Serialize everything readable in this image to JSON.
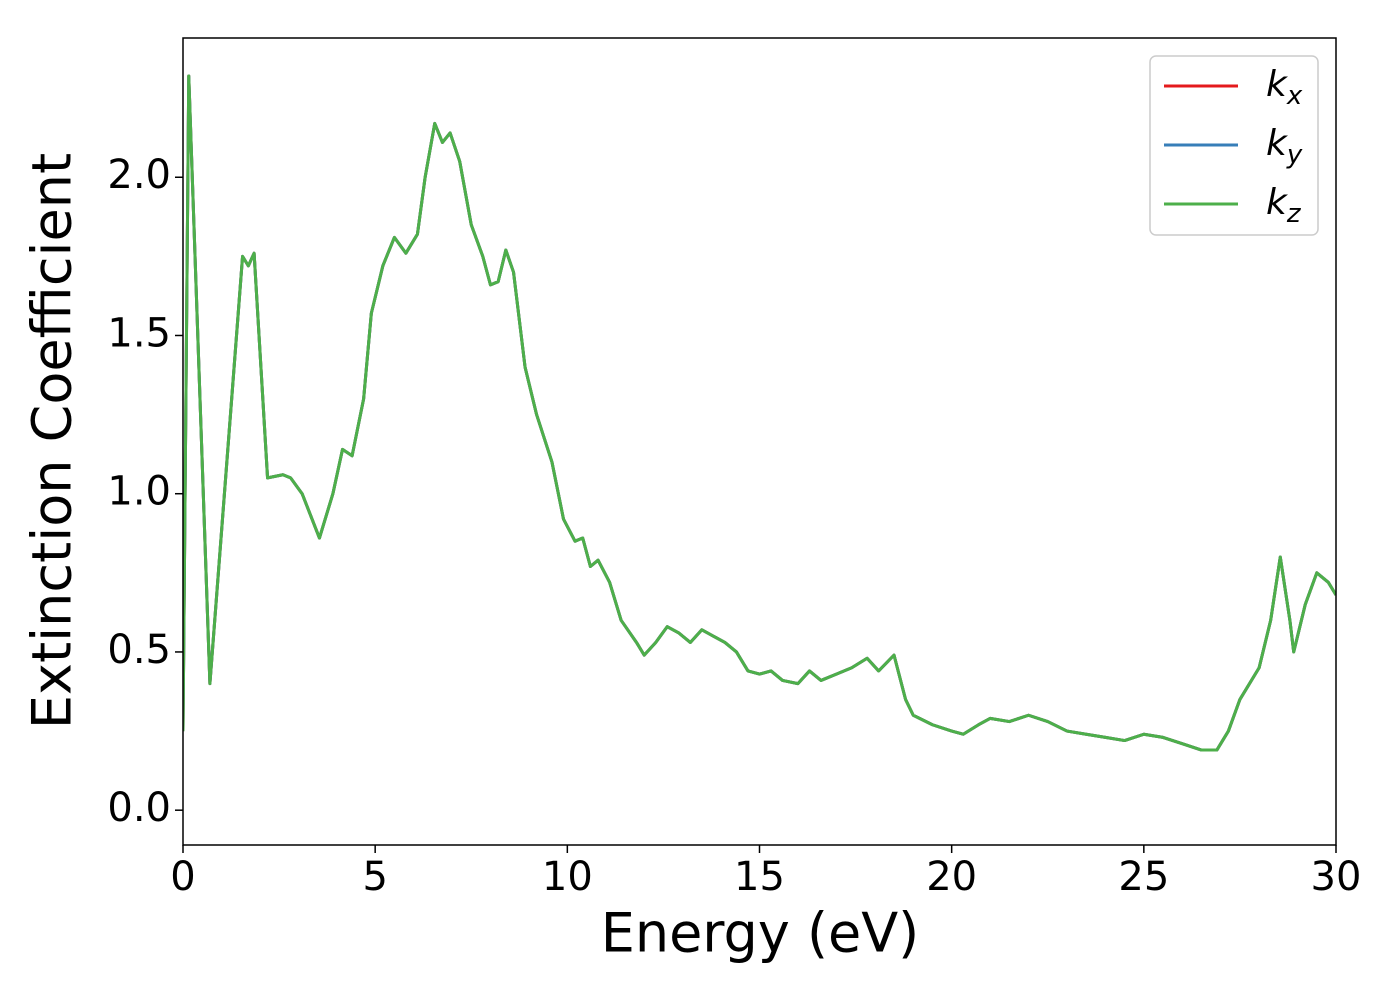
{
  "chart_data": {
    "type": "line",
    "xlabel": "Energy (eV)",
    "ylabel": "Extinction Coefficient",
    "x": [
      0,
      0.15,
      0.7,
      1.55,
      1.7,
      1.85,
      2.2,
      2.6,
      2.8,
      3.1,
      3.55,
      3.9,
      4.15,
      4.4,
      4.7,
      4.9,
      5.2,
      5.5,
      5.8,
      6.1,
      6.3,
      6.55,
      6.75,
      6.95,
      7.2,
      7.5,
      7.8,
      8.0,
      8.2,
      8.4,
      8.6,
      8.9,
      9.2,
      9.6,
      9.9,
      10.2,
      10.4,
      10.6,
      10.8,
      11.1,
      11.4,
      11.8,
      12.0,
      12.3,
      12.6,
      12.9,
      13.2,
      13.5,
      13.8,
      14.1,
      14.4,
      14.7,
      15.0,
      15.3,
      15.6,
      16.0,
      16.3,
      16.6,
      17.0,
      17.4,
      17.8,
      18.1,
      18.5,
      18.8,
      19.0,
      19.5,
      20.0,
      20.3,
      20.7,
      21.0,
      21.5,
      22.0,
      22.5,
      23.0,
      23.5,
      24.0,
      24.5,
      25.0,
      25.5,
      26.0,
      26.5,
      26.9,
      27.2,
      27.5,
      28.0,
      28.3,
      28.55,
      28.8,
      28.9,
      29.2,
      29.5,
      29.8,
      30.0
    ],
    "series": [
      {
        "name": "kx",
        "color": "#e41a1c",
        "values": [
          0.25,
          2.32,
          0.4,
          1.75,
          1.72,
          1.76,
          1.05,
          1.06,
          1.05,
          1.0,
          0.86,
          1.0,
          1.14,
          1.12,
          1.3,
          1.57,
          1.72,
          1.81,
          1.76,
          1.82,
          2.0,
          2.17,
          2.11,
          2.14,
          2.05,
          1.85,
          1.75,
          1.66,
          1.67,
          1.77,
          1.7,
          1.4,
          1.25,
          1.1,
          0.92,
          0.85,
          0.86,
          0.77,
          0.79,
          0.72,
          0.6,
          0.53,
          0.49,
          0.53,
          0.58,
          0.56,
          0.53,
          0.57,
          0.55,
          0.53,
          0.5,
          0.44,
          0.43,
          0.44,
          0.41,
          0.4,
          0.44,
          0.41,
          0.43,
          0.45,
          0.48,
          0.44,
          0.49,
          0.35,
          0.3,
          0.27,
          0.25,
          0.24,
          0.27,
          0.29,
          0.28,
          0.3,
          0.28,
          0.25,
          0.24,
          0.23,
          0.22,
          0.24,
          0.23,
          0.21,
          0.19,
          0.19,
          0.25,
          0.35,
          0.45,
          0.6,
          0.8,
          0.6,
          0.5,
          0.65,
          0.75,
          0.72,
          0.68
        ]
      },
      {
        "name": "ky",
        "color": "#377eb8",
        "values": [
          0.25,
          2.32,
          0.4,
          1.75,
          1.72,
          1.76,
          1.05,
          1.06,
          1.05,
          1.0,
          0.86,
          1.0,
          1.14,
          1.12,
          1.3,
          1.57,
          1.72,
          1.81,
          1.76,
          1.82,
          2.0,
          2.17,
          2.11,
          2.14,
          2.05,
          1.85,
          1.75,
          1.66,
          1.67,
          1.77,
          1.7,
          1.4,
          1.25,
          1.1,
          0.92,
          0.85,
          0.86,
          0.77,
          0.79,
          0.72,
          0.6,
          0.53,
          0.49,
          0.53,
          0.58,
          0.56,
          0.53,
          0.57,
          0.55,
          0.53,
          0.5,
          0.44,
          0.43,
          0.44,
          0.41,
          0.4,
          0.44,
          0.41,
          0.43,
          0.45,
          0.48,
          0.44,
          0.49,
          0.35,
          0.3,
          0.27,
          0.25,
          0.24,
          0.27,
          0.29,
          0.28,
          0.3,
          0.28,
          0.25,
          0.24,
          0.23,
          0.22,
          0.24,
          0.23,
          0.21,
          0.19,
          0.19,
          0.25,
          0.35,
          0.45,
          0.6,
          0.8,
          0.6,
          0.5,
          0.65,
          0.75,
          0.72,
          0.68
        ]
      },
      {
        "name": "kz",
        "color": "#4daf4a",
        "values": [
          0.25,
          2.32,
          0.4,
          1.75,
          1.72,
          1.76,
          1.05,
          1.06,
          1.05,
          1.0,
          0.86,
          1.0,
          1.14,
          1.12,
          1.3,
          1.57,
          1.72,
          1.81,
          1.76,
          1.82,
          2.0,
          2.17,
          2.11,
          2.14,
          2.05,
          1.85,
          1.75,
          1.66,
          1.67,
          1.77,
          1.7,
          1.4,
          1.25,
          1.1,
          0.92,
          0.85,
          0.86,
          0.77,
          0.79,
          0.72,
          0.6,
          0.53,
          0.49,
          0.53,
          0.58,
          0.56,
          0.53,
          0.57,
          0.55,
          0.53,
          0.5,
          0.44,
          0.43,
          0.44,
          0.41,
          0.4,
          0.44,
          0.41,
          0.43,
          0.45,
          0.48,
          0.44,
          0.49,
          0.35,
          0.3,
          0.27,
          0.25,
          0.24,
          0.27,
          0.29,
          0.28,
          0.3,
          0.28,
          0.25,
          0.24,
          0.23,
          0.22,
          0.24,
          0.23,
          0.21,
          0.19,
          0.19,
          0.25,
          0.35,
          0.45,
          0.6,
          0.8,
          0.6,
          0.5,
          0.65,
          0.75,
          0.72,
          0.68
        ]
      }
    ],
    "xlim": [
      0,
      30
    ],
    "xticks": [
      0,
      5,
      10,
      15,
      20,
      25,
      30
    ],
    "ylim": [
      -0.11,
      2.44
    ],
    "yticks": [
      {
        "value": 0,
        "label": "0.0"
      },
      0.5,
      {
        "value": 1,
        "label": "1.0"
      },
      1.5,
      {
        "value": 2,
        "label": "2.0"
      }
    ],
    "legend": "upper right"
  }
}
